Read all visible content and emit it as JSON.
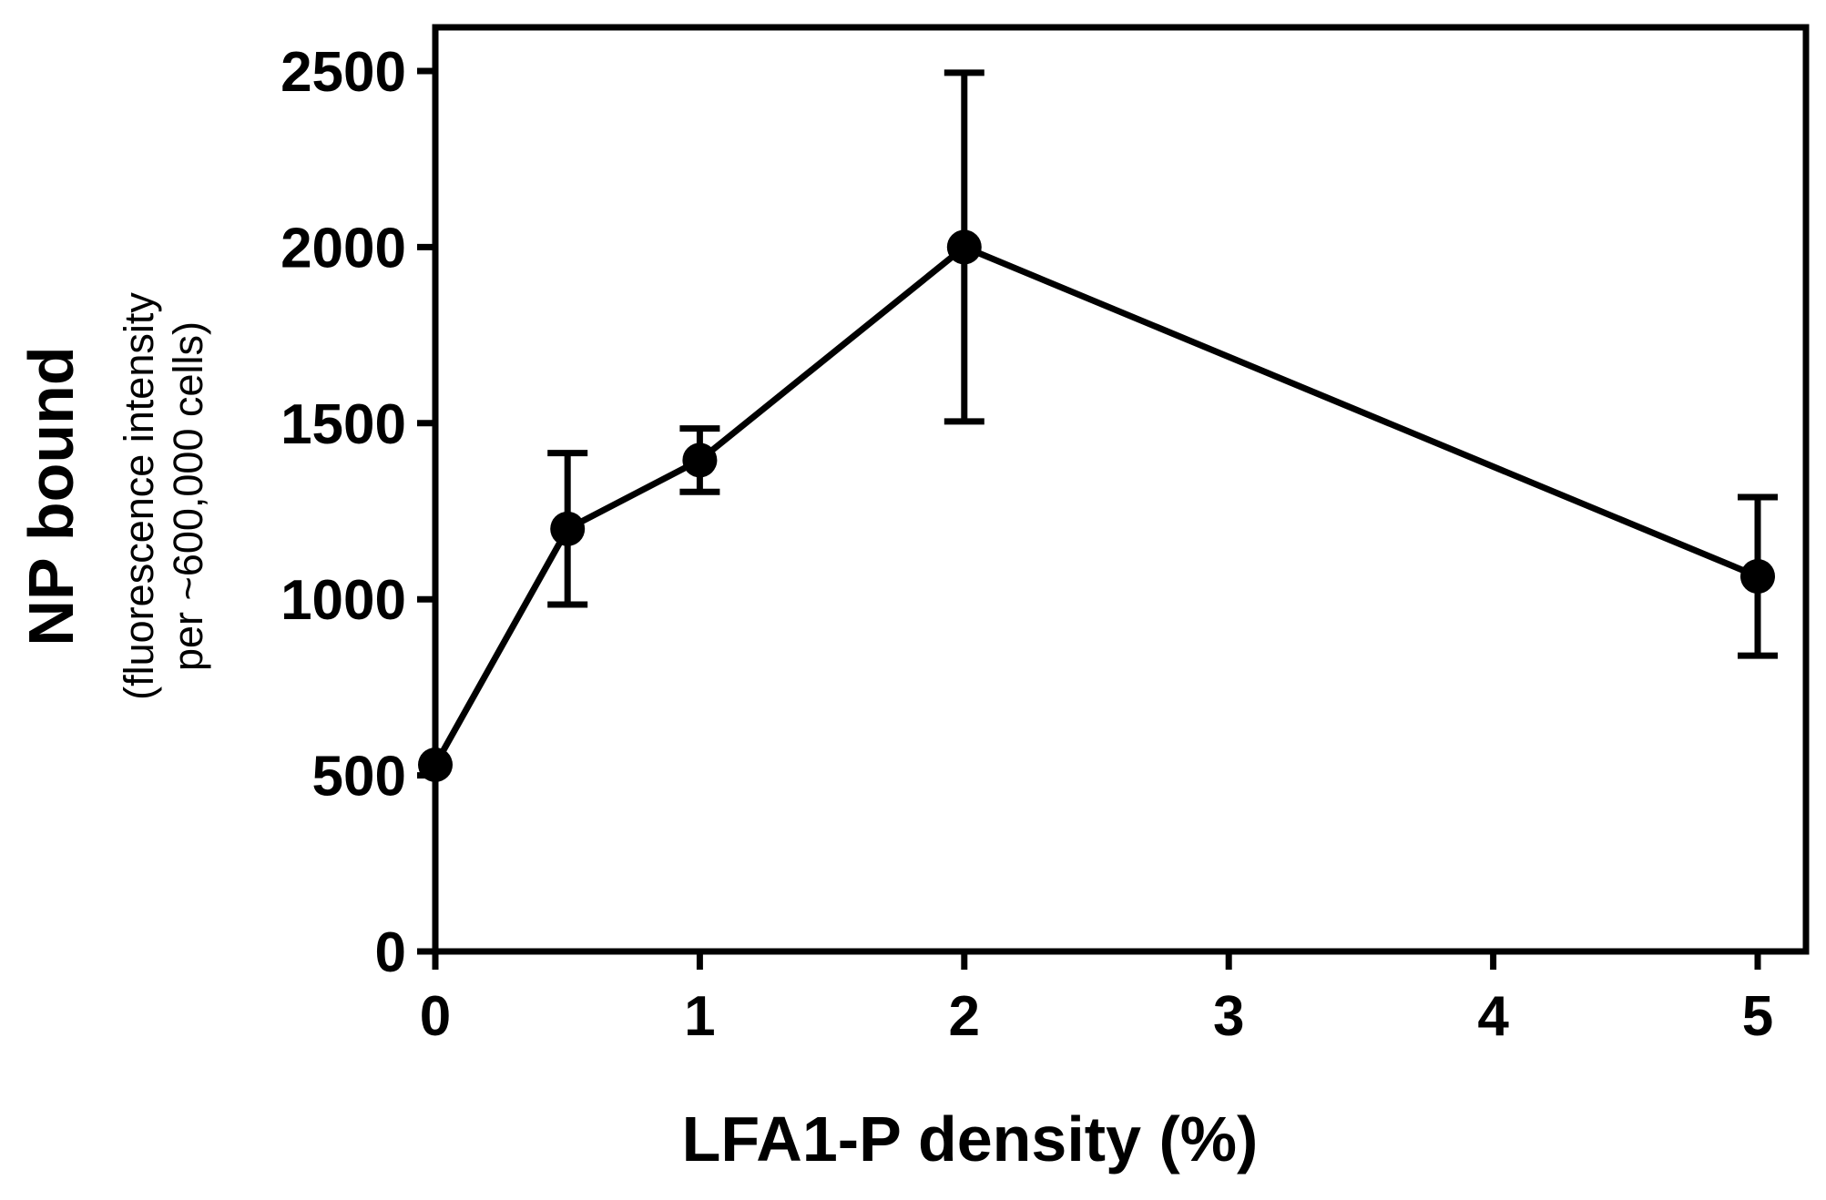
{
  "chart_data": {
    "type": "line",
    "title": "",
    "xlabel": "LFA1-P density (%)",
    "ylabel": "NP bound",
    "ylabel_sub": [
      "(fluorescence intensity",
      "per ~600,000 cells)"
    ],
    "xlim": [
      0,
      5.2
    ],
    "ylim": [
      0,
      2500
    ],
    "xticks": [
      0,
      1,
      2,
      3,
      4,
      5
    ],
    "xtick_labels": [
      "0",
      "1",
      "2",
      "3",
      "4",
      "5"
    ],
    "yticks": [
      0,
      500,
      1000,
      1500,
      2000,
      2500
    ],
    "ytick_labels": [
      "0",
      "500",
      "1000",
      "1500",
      "2000",
      "2500"
    ],
    "grid": false,
    "series": [
      {
        "x": [
          0,
          0.5,
          1,
          2,
          5
        ],
        "y": [
          530,
          1200,
          1395,
          2000,
          1065
        ],
        "error": [
          0,
          215,
          90,
          495,
          225
        ]
      }
    ],
    "color": "#000000"
  }
}
